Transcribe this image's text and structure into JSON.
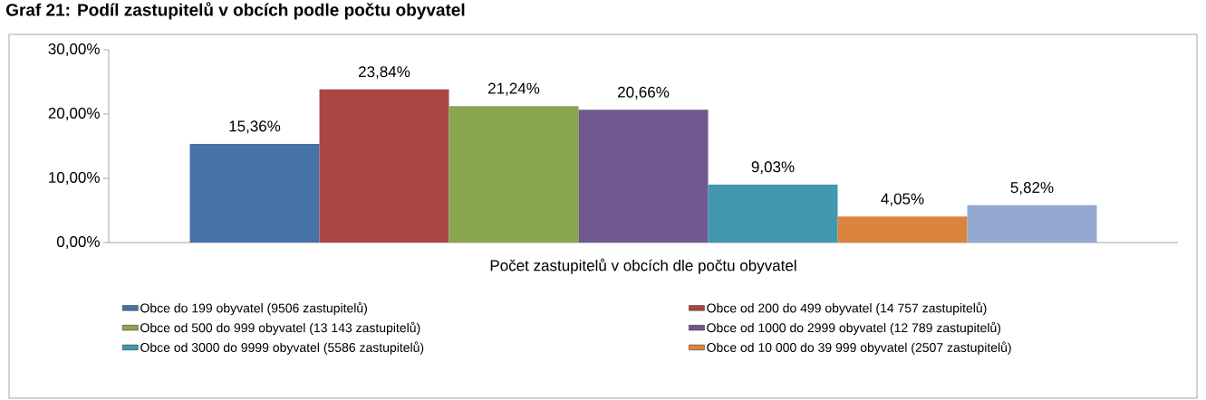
{
  "chart_data": {
    "type": "bar",
    "title": "Graf 21: Podíl zastupitelů v obcích podle počtu obyvatel",
    "categories": [
      "Počet zastupitelů v obcích dle počtu obyvatel"
    ],
    "series": [
      {
        "name": "Obce do 199 obyvatel (9506 zastupitelů)",
        "color": "#4572a7",
        "values": [
          15.36
        ],
        "value_labels": [
          "15,36%"
        ]
      },
      {
        "name": "Obce od 200 do 499 obyvatel (14 757 zastupitelů)",
        "color": "#aa4643",
        "values": [
          23.84
        ],
        "value_labels": [
          "23,84%"
        ]
      },
      {
        "name": "Obce od 500 do 999 obyvatel (13 143 zastupitelů)",
        "color": "#89a54e",
        "values": [
          21.24
        ],
        "value_labels": [
          "21,24%"
        ]
      },
      {
        "name": "Obce od 1000 do 2999 obyvatel (12 789 zastupitelů)",
        "color": "#71588f",
        "values": [
          20.66
        ],
        "value_labels": [
          "20,66%"
        ]
      },
      {
        "name": "Obce od 3000 do 9999 obyvatel (5586 zastupitelů)",
        "color": "#4198af",
        "values": [
          9.03
        ],
        "value_labels": [
          "9,03%"
        ]
      },
      {
        "name": "Obce od 10 000 do 39 999 obyvatel (2507 zastupitelů)",
        "color": "#db843d",
        "values": [
          4.05
        ],
        "value_labels": [
          "4,05%"
        ]
      },
      {
        "color": "#93a9cf",
        "values": [
          5.82
        ],
        "value_labels": [
          "5,82%"
        ]
      }
    ],
    "ylim": [
      0,
      30
    ],
    "yticks": [
      {
        "value": 0,
        "label": "0,00%"
      },
      {
        "value": 10,
        "label": "10,00%"
      },
      {
        "value": 20,
        "label": "20,00%"
      },
      {
        "value": 30,
        "label": "30,00%"
      }
    ],
    "legend": "bottom"
  }
}
